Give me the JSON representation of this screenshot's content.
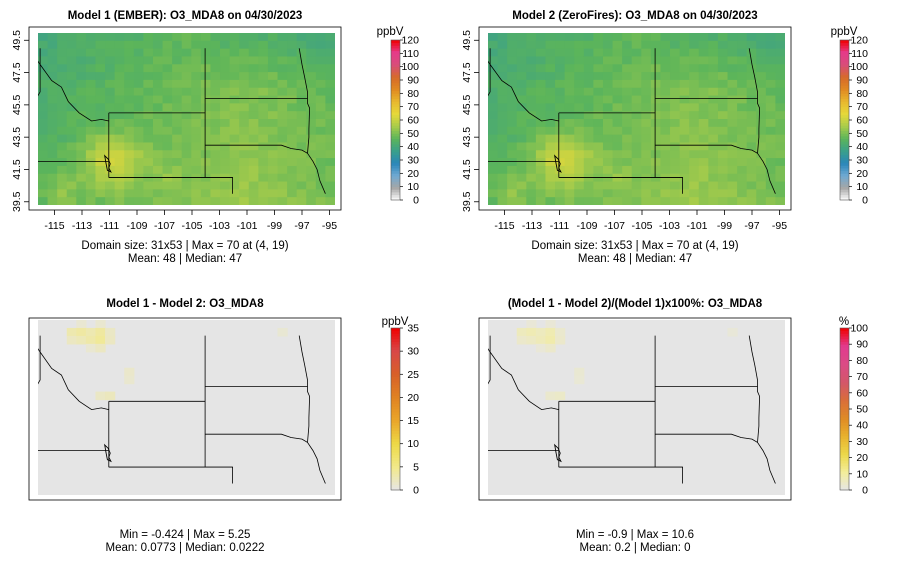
{
  "panels": [
    {
      "title": "Model 1 (EMBER): O3_MDA8 on 04/30/2023",
      "legend_unit": "ppbV",
      "legend_ticks": [
        "0",
        "10",
        "20",
        "30",
        "40",
        "50",
        "60",
        "70",
        "80",
        "90",
        "100",
        "110",
        "120"
      ],
      "x_ticks": [
        "-115",
        "-113",
        "-111",
        "-109",
        "-107",
        "-105",
        "-103",
        "-101",
        "-99",
        "-97",
        "-95"
      ],
      "y_ticks": [
        "39.5",
        "41.5",
        "43.5",
        "45.5",
        "47.5",
        "49.5"
      ],
      "stats_line1": "Domain size: 31x53 | Max = 70 at (4, 19)",
      "stats_line2": "Mean: 48 |  Median: 47"
    },
    {
      "title": "Model 2 (ZeroFires): O3_MDA8 on 04/30/2023",
      "legend_unit": "ppbV",
      "legend_ticks": [
        "0",
        "10",
        "20",
        "30",
        "40",
        "50",
        "60",
        "70",
        "80",
        "90",
        "100",
        "110",
        "120"
      ],
      "x_ticks": [
        "-115",
        "-113",
        "-111",
        "-109",
        "-107",
        "-105",
        "-103",
        "-101",
        "-99",
        "-97",
        "-95"
      ],
      "y_ticks": [
        "39.5",
        "41.5",
        "43.5",
        "45.5",
        "47.5",
        "49.5"
      ],
      "stats_line1": "Domain size: 31x53 | Max = 70 at (4, 19)",
      "stats_line2": "Mean: 48 |  Median: 47"
    },
    {
      "title": "Model 1 - Model 2: O3_MDA8",
      "legend_unit": "ppbV",
      "legend_ticks": [
        "0",
        "5",
        "10",
        "15",
        "20",
        "25",
        "30",
        "35"
      ],
      "stats_line1": "Min = -0.424 | Max = 5.25",
      "stats_line2": "Mean: 0.0773 |  Median: 0.0222"
    },
    {
      "title": "(Model 1 - Model 2)/(Model 1)x100%: O3_MDA8",
      "legend_unit": "%",
      "legend_ticks": [
        "0",
        "10",
        "20",
        "30",
        "40",
        "50",
        "60",
        "70",
        "80",
        "90",
        "100"
      ],
      "stats_line1": "Min = -0.9 | Max = 10.6",
      "stats_line2": "Mean: 0.2 |  Median: 0"
    }
  ],
  "colors": {
    "ozone_scale": [
      "#ffffff",
      "#a6a6a6",
      "#6fa9d2",
      "#2a86b9",
      "#3aa08a",
      "#5cb55a",
      "#a8cc4a",
      "#e6d93a",
      "#e8b82e",
      "#e08a22",
      "#d66a2a",
      "#d84d7a",
      "#e63b8a",
      "#f00000"
    ],
    "diff_scale": [
      "#e6e6e6",
      "#f2e98a",
      "#edd946",
      "#eaa62a",
      "#e08322",
      "#d86028",
      "#d84848",
      "#f00000"
    ],
    "pct_scale": [
      "#e6e6e6",
      "#f3ed9a",
      "#ecd84a",
      "#e8b12d",
      "#df8a25",
      "#d96e3a",
      "#d3566a",
      "#db4b85",
      "#e23a8e",
      "#f00000"
    ],
    "diff_background": "#e5e5e5"
  }
}
